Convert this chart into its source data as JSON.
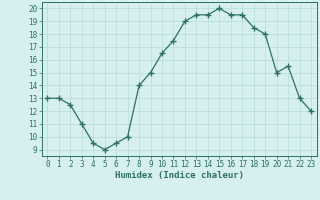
{
  "x": [
    0,
    1,
    2,
    3,
    4,
    5,
    6,
    7,
    8,
    9,
    10,
    11,
    12,
    13,
    14,
    15,
    16,
    17,
    18,
    19,
    20,
    21,
    22,
    23
  ],
  "y": [
    13,
    13,
    12.5,
    11,
    9.5,
    9,
    9.5,
    10,
    14,
    15,
    16.5,
    17.5,
    19,
    19.5,
    19.5,
    20,
    19.5,
    19.5,
    18.5,
    18,
    15,
    15.5,
    13,
    12
  ],
  "line_color": "#2d7068",
  "marker": "+",
  "marker_size": 4,
  "bg_color": "#d6f0ef",
  "grid_color": "#b8dbd9",
  "xlabel": "Humidex (Indice chaleur)",
  "ylim": [
    8.5,
    20.5
  ],
  "xlim": [
    -0.5,
    23.5
  ],
  "yticks": [
    9,
    10,
    11,
    12,
    13,
    14,
    15,
    16,
    17,
    18,
    19,
    20
  ],
  "xticks": [
    0,
    1,
    2,
    3,
    4,
    5,
    6,
    7,
    8,
    9,
    10,
    11,
    12,
    13,
    14,
    15,
    16,
    17,
    18,
    19,
    20,
    21,
    22,
    23
  ],
  "xlabel_fontsize": 6.5,
  "tick_fontsize": 5.5,
  "linewidth": 0.9,
  "marker_linewidth": 1.0
}
